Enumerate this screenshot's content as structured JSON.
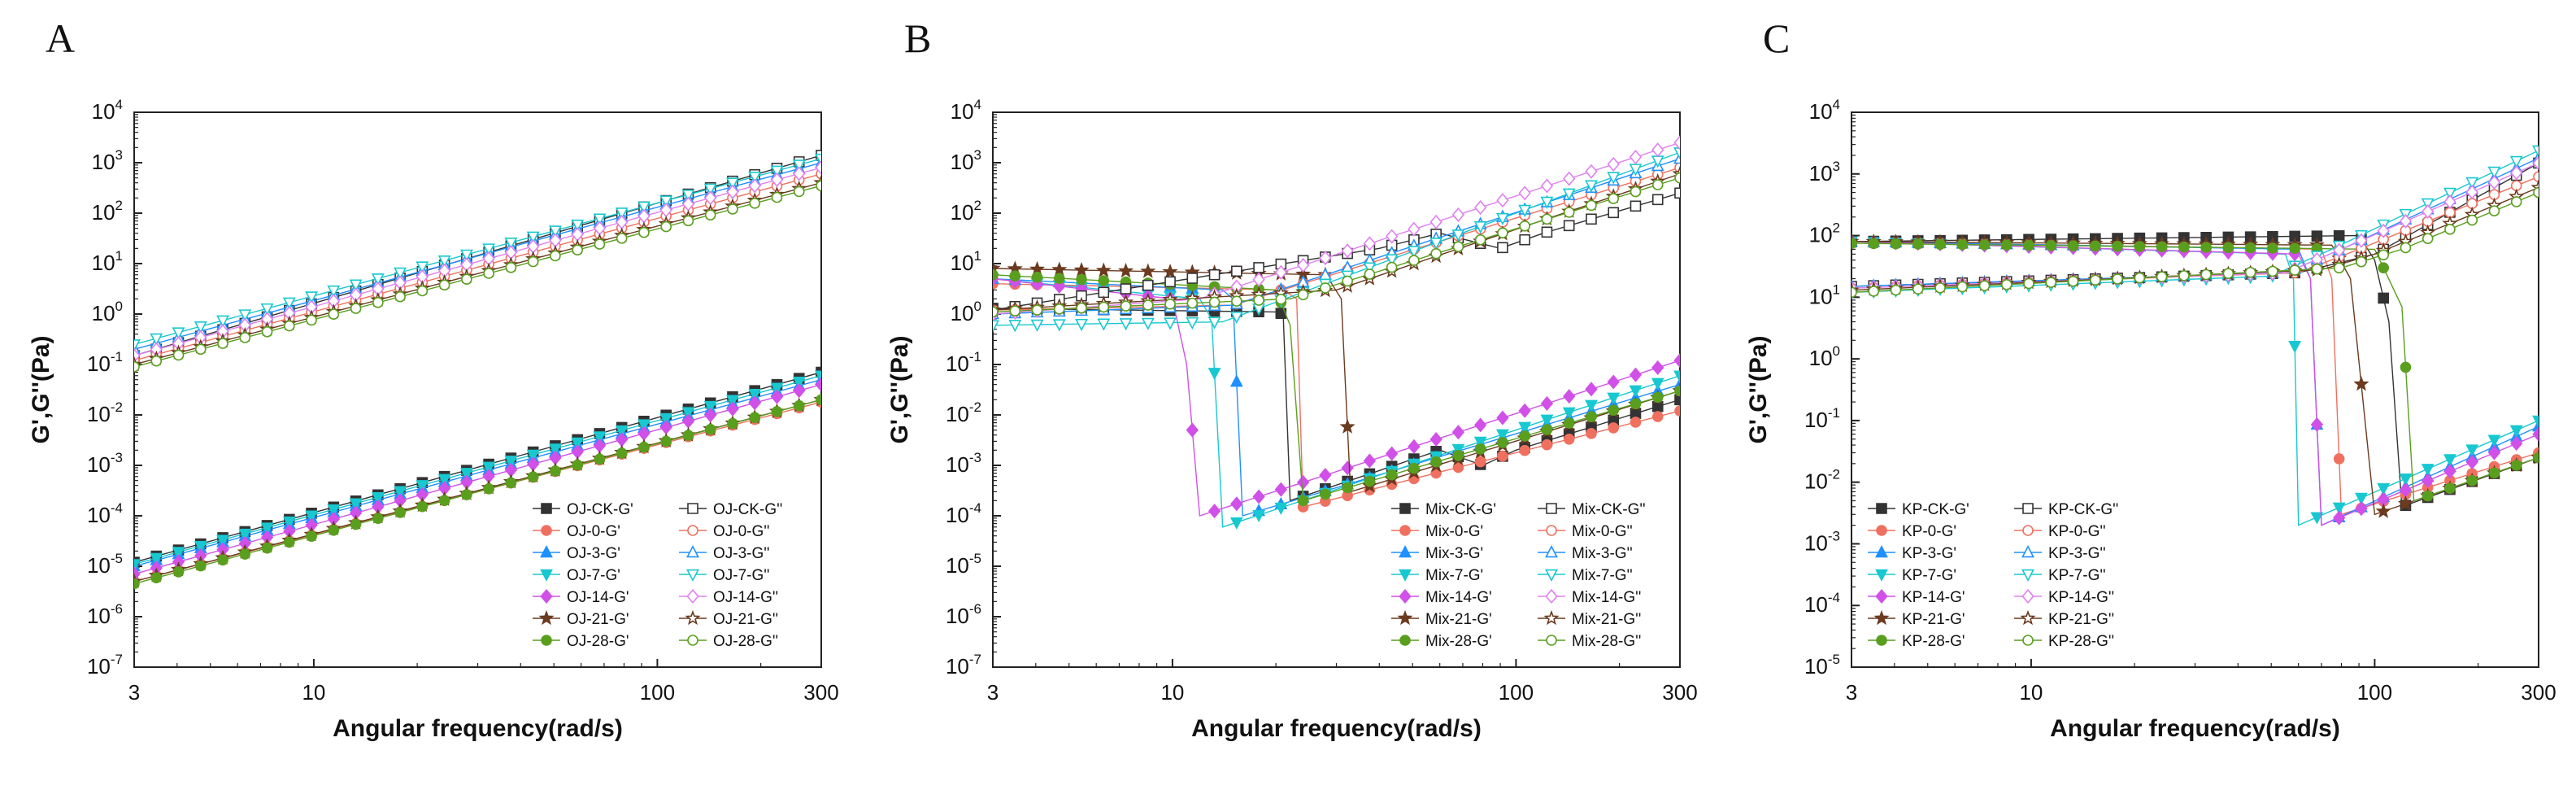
{
  "chart_data": [
    {
      "type": "scatter",
      "panel": "A",
      "xlabel": "Angular frequency(rad/s)",
      "ylabel": "G',G''(Pa)",
      "x_scale": "log",
      "y_scale": "log",
      "xlim": [
        3,
        300
      ],
      "ylim": [
        1e-07,
        10000.0
      ],
      "x_ticks": [
        "3",
        "10",
        "100",
        "300"
      ],
      "y_ticks": [
        "10-7",
        "10-6",
        "10-5",
        "10-4",
        "10-3",
        "10-2",
        "10-1",
        "100",
        "101",
        "102",
        "103",
        "104"
      ],
      "legend_position": "bottom-right",
      "series": [
        {
          "name": "OJ-CK-G'",
          "color": "#333333",
          "marker": "square",
          "filled": true,
          "x": [
            3,
            300
          ],
          "y": [
            1.2e-05,
            0.07
          ]
        },
        {
          "name": "OJ-0-G'",
          "color": "#f07060",
          "marker": "circle",
          "filled": true,
          "x": [
            3,
            300
          ],
          "y": [
            5e-06,
            0.018
          ]
        },
        {
          "name": "OJ-3-G'",
          "color": "#1e90ff",
          "marker": "triangle-up",
          "filled": true,
          "x": [
            3,
            300
          ],
          "y": [
            1e-05,
            0.05
          ]
        },
        {
          "name": "OJ-7-G'",
          "color": "#18c8d0",
          "marker": "triangle-down",
          "filled": true,
          "x": [
            3,
            300
          ],
          "y": [
            1.1e-05,
            0.06
          ]
        },
        {
          "name": "OJ-14-G'",
          "color": "#d050e8",
          "marker": "diamond",
          "filled": true,
          "x": [
            3,
            300
          ],
          "y": [
            7e-06,
            0.04
          ]
        },
        {
          "name": "OJ-21-G'",
          "color": "#6b3a1f",
          "marker": "star",
          "filled": true,
          "x": [
            3,
            300
          ],
          "y": [
            5e-06,
            0.02
          ]
        },
        {
          "name": "OJ-28-G'",
          "color": "#5a9e1e",
          "marker": "circle",
          "filled": true,
          "x": [
            3,
            300
          ],
          "y": [
            4.5e-06,
            0.02
          ]
        },
        {
          "name": "OJ-CK-G''",
          "color": "#333333",
          "marker": "square",
          "filled": false,
          "x": [
            3,
            300
          ],
          "y": [
            0.15,
            1400
          ]
        },
        {
          "name": "OJ-0-G''",
          "color": "#f07060",
          "marker": "circle",
          "filled": false,
          "x": [
            3,
            300
          ],
          "y": [
            0.12,
            600
          ]
        },
        {
          "name": "OJ-3-G''",
          "color": "#1e90ff",
          "marker": "triangle-up",
          "filled": false,
          "x": [
            3,
            300
          ],
          "y": [
            0.2,
            1000
          ]
        },
        {
          "name": "OJ-7-G''",
          "color": "#18c8d0",
          "marker": "triangle-down",
          "filled": false,
          "x": [
            3,
            300
          ],
          "y": [
            0.25,
            1200
          ]
        },
        {
          "name": "OJ-14-G''",
          "color": "#e080f0",
          "marker": "diamond",
          "filled": false,
          "x": [
            3,
            300
          ],
          "y": [
            0.15,
            800
          ]
        },
        {
          "name": "OJ-21-G''",
          "color": "#6b3a1f",
          "marker": "star",
          "filled": false,
          "x": [
            3,
            300
          ],
          "y": [
            0.1,
            400
          ]
        },
        {
          "name": "OJ-28-G''",
          "color": "#5a9e1e",
          "marker": "circle",
          "filled": false,
          "x": [
            3,
            300
          ],
          "y": [
            0.09,
            350
          ]
        }
      ]
    },
    {
      "type": "scatter",
      "panel": "B",
      "xlabel": "Angular frequency(rad/s)",
      "ylabel": "G',G''(Pa)",
      "x_scale": "log",
      "y_scale": "log",
      "xlim": [
        3,
        300
      ],
      "ylim": [
        1e-07,
        10000.0
      ],
      "x_ticks": [
        "3",
        "10",
        "100",
        "300"
      ],
      "y_ticks": [
        "10-7",
        "10-6",
        "10-5",
        "10-4",
        "10-3",
        "10-2",
        "10-1",
        "100",
        "101",
        "102",
        "103",
        "104"
      ],
      "legend_position": "bottom-right",
      "series": [
        {
          "name": "Mix-CK-G'",
          "color": "#333333",
          "marker": "square",
          "filled": true,
          "x": [
            3,
            20,
            21,
            22,
            60,
            80,
            100,
            300
          ],
          "y": [
            1.3,
            1.1,
            1.0,
            0.0002,
            0.002,
            0.001,
            0.002,
            0.02
          ]
        },
        {
          "name": "Mix-0-G'",
          "color": "#f07060",
          "marker": "circle",
          "filled": true,
          "x": [
            3,
            21,
            23,
            24,
            300
          ],
          "y": [
            4,
            3,
            2,
            0.00015,
            0.012
          ]
        },
        {
          "name": "Mix-3-G'",
          "color": "#1e90ff",
          "marker": "triangle-up",
          "filled": true,
          "x": [
            3,
            14,
            15,
            16,
            300
          ],
          "y": [
            5,
            3,
            2,
            0.0001,
            0.04
          ]
        },
        {
          "name": "Mix-7-G'",
          "color": "#18c8d0",
          "marker": "triangle-down",
          "filled": true,
          "x": [
            3,
            12,
            13,
            14,
            300
          ],
          "y": [
            5,
            2,
            0.8,
            6e-05,
            0.06
          ]
        },
        {
          "name": "Mix-14-G'",
          "color": "#d050e8",
          "marker": "diamond",
          "filled": true,
          "x": [
            3,
            10,
            11,
            12,
            300
          ],
          "y": [
            5,
            2,
            0.1,
            0.0001,
            0.12
          ]
        },
        {
          "name": "Mix-21-G'",
          "color": "#6b3a1f",
          "marker": "star",
          "filled": true,
          "x": [
            3,
            28,
            31,
            33,
            300
          ],
          "y": [
            8,
            6,
            2,
            0.0003,
            0.03
          ]
        },
        {
          "name": "Mix-28-G'",
          "color": "#5a9e1e",
          "marker": "circle",
          "filled": true,
          "x": [
            3,
            20,
            22,
            24,
            300
          ],
          "y": [
            6,
            3,
            0.6,
            0.0002,
            0.03
          ]
        },
        {
          "name": "Mix-CK-G''",
          "color": "#333333",
          "marker": "square",
          "filled": false,
          "x": [
            3,
            40,
            60,
            90,
            120,
            300
          ],
          "y": [
            1.2,
            20,
            40,
            20,
            40,
            250
          ]
        },
        {
          "name": "Mix-0-G''",
          "color": "#f07060",
          "marker": "circle",
          "filled": false,
          "x": [
            3,
            15,
            300
          ],
          "y": [
            1.2,
            1.5,
            800
          ]
        },
        {
          "name": "Mix-3-G''",
          "color": "#1e90ff",
          "marker": "triangle-up",
          "filled": false,
          "x": [
            3,
            15,
            300
          ],
          "y": [
            1.0,
            1.5,
            1200
          ]
        },
        {
          "name": "Mix-7-G''",
          "color": "#18c8d0",
          "marker": "triangle-down",
          "filled": false,
          "x": [
            3,
            14,
            300
          ],
          "y": [
            0.6,
            0.7,
            1600
          ]
        },
        {
          "name": "Mix-14-G''",
          "color": "#e080f0",
          "marker": "diamond",
          "filled": false,
          "x": [
            3,
            12,
            300
          ],
          "y": [
            1.0,
            2,
            2500
          ]
        },
        {
          "name": "Mix-21-G''",
          "color": "#6b3a1f",
          "marker": "star",
          "filled": false,
          "x": [
            3,
            30,
            300
          ],
          "y": [
            1.2,
            3,
            600
          ]
        },
        {
          "name": "Mix-28-G''",
          "color": "#5a9e1e",
          "marker": "circle",
          "filled": false,
          "x": [
            3,
            22,
            300
          ],
          "y": [
            1.1,
            2,
            500
          ]
        }
      ]
    },
    {
      "type": "scatter",
      "panel": "C",
      "xlabel": "Angular frequency(rad/s)",
      "ylabel": "G',G''(Pa)",
      "x_scale": "log",
      "y_scale": "log",
      "xlim": [
        3,
        300
      ],
      "ylim": [
        1e-05,
        10000.0
      ],
      "x_ticks": [
        "3",
        "10",
        "100",
        "300"
      ],
      "y_ticks": [
        "10-5",
        "10-4",
        "10-3",
        "10-2",
        "10-1",
        "100",
        "101",
        "102",
        "103",
        "104"
      ],
      "legend_position": "bottom-left",
      "series": [
        {
          "name": "KP-CK-G'",
          "color": "#333333",
          "marker": "square",
          "filled": true,
          "x": [
            3,
            90,
            100,
            110,
            120,
            300
          ],
          "y": [
            80,
            100,
            40,
            4,
            0.004,
            0.025
          ]
        },
        {
          "name": "KP-0-G'",
          "color": "#f07060",
          "marker": "circle",
          "filled": true,
          "x": [
            3,
            70,
            75,
            80,
            300
          ],
          "y": [
            80,
            60,
            20,
            0.003,
            0.03
          ]
        },
        {
          "name": "KP-3-G'",
          "color": "#1e90ff",
          "marker": "triangle-up",
          "filled": true,
          "x": [
            3,
            60,
            65,
            70,
            300
          ],
          "y": [
            80,
            60,
            20,
            0.002,
            0.08
          ]
        },
        {
          "name": "KP-7-G'",
          "color": "#18c8d0",
          "marker": "triangle-down",
          "filled": true,
          "x": [
            3,
            55,
            58,
            60,
            300
          ],
          "y": [
            80,
            50,
            20,
            0.002,
            0.1
          ]
        },
        {
          "name": "KP-14-G'",
          "color": "#d050e8",
          "marker": "diamond",
          "filled": true,
          "x": [
            3,
            60,
            65,
            70,
            300
          ],
          "y": [
            80,
            50,
            20,
            0.002,
            0.06
          ]
        },
        {
          "name": "KP-21-G'",
          "color": "#6b3a1f",
          "marker": "star",
          "filled": true,
          "x": [
            3,
            75,
            85,
            100,
            300
          ],
          "y": [
            80,
            70,
            20,
            0.003,
            0.025
          ]
        },
        {
          "name": "KP-28-G'",
          "color": "#5a9e1e",
          "marker": "circle",
          "filled": true,
          "x": [
            3,
            100,
            120,
            130,
            300
          ],
          "y": [
            75,
            60,
            7,
            0.005,
            0.025
          ]
        },
        {
          "name": "KP-CK-G''",
          "color": "#333333",
          "marker": "square",
          "filled": false,
          "x": [
            3,
            60,
            100,
            300
          ],
          "y": [
            15,
            25,
            50,
            1500
          ]
        },
        {
          "name": "KP-0-G''",
          "color": "#f07060",
          "marker": "circle",
          "filled": false,
          "x": [
            3,
            60,
            90,
            300
          ],
          "y": [
            14,
            25,
            60,
            900
          ]
        },
        {
          "name": "KP-3-G''",
          "color": "#1e90ff",
          "marker": "triangle-up",
          "filled": false,
          "x": [
            3,
            55,
            80,
            300
          ],
          "y": [
            15,
            25,
            60,
            1800
          ]
        },
        {
          "name": "KP-7-G''",
          "color": "#18c8d0",
          "marker": "triangle-down",
          "filled": false,
          "x": [
            3,
            50,
            75,
            300
          ],
          "y": [
            12,
            22,
            60,
            2400
          ]
        },
        {
          "name": "KP-14-G''",
          "color": "#e080f0",
          "marker": "diamond",
          "filled": false,
          "x": [
            3,
            55,
            80,
            300
          ],
          "y": [
            14,
            25,
            60,
            1500
          ]
        },
        {
          "name": "KP-21-G''",
          "color": "#6b3a1f",
          "marker": "star",
          "filled": false,
          "x": [
            3,
            70,
            100,
            300
          ],
          "y": [
            13,
            28,
            50,
            600
          ]
        },
        {
          "name": "KP-28-G''",
          "color": "#5a9e1e",
          "marker": "circle",
          "filled": false,
          "x": [
            3,
            80,
            120,
            300
          ],
          "y": [
            12,
            30,
            60,
            500
          ]
        }
      ]
    }
  ],
  "panels": [
    {
      "letter": "A"
    },
    {
      "letter": "B"
    },
    {
      "letter": "C"
    }
  ]
}
